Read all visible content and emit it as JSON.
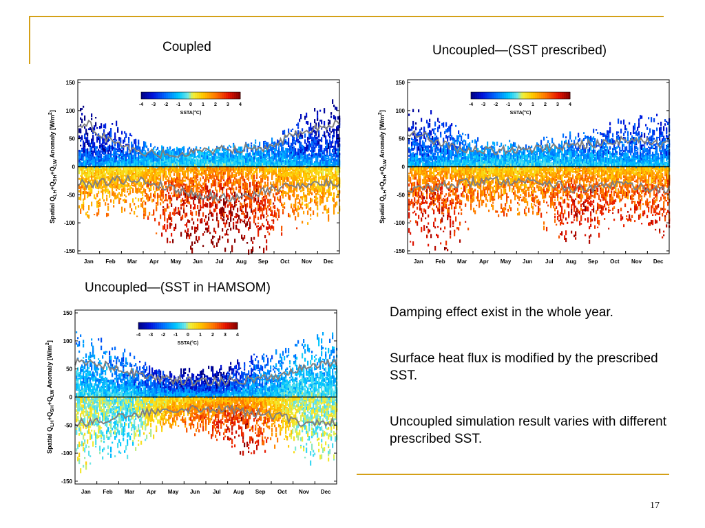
{
  "slide": {
    "accent_color": "#d4a017",
    "page_number": "17",
    "bullets": [
      "Damping effect exist in the whole year.",
      "Surface heat flux is modified by the prescribed SST.",
      "Uncoupled simulation result varies with different prescribed SST."
    ]
  },
  "chart_data": [
    {
      "type": "scatter",
      "title": "Coupled",
      "ylabel": "Spatial Q_LH+Q_SH+Q_LW Anomaly [W/m^2]",
      "ylabel_parts": {
        "p1": "Spatial Q",
        "s1": "LH",
        "p2": "+Q",
        "s2": "SH",
        "p3": "+Q",
        "s3": "LW",
        "p4": " Anomaly [W/m",
        "sup": "2",
        "p5": "]"
      },
      "yticks": [
        "150",
        "100",
        "50",
        "0",
        "-50",
        "-100",
        "-150"
      ],
      "ylim": [
        -155,
        155
      ],
      "months": [
        "Jan",
        "Feb",
        "Mar",
        "Apr",
        "May",
        "Jun",
        "Jul",
        "Aug",
        "Sep",
        "Oct",
        "Nov",
        "Dec"
      ],
      "colorbar": {
        "label": "SSTA(°C)",
        "ticks": [
          "-4",
          "-3",
          "-2",
          "-1",
          "0",
          "1",
          "2",
          "3",
          "4"
        ],
        "range": [
          -4,
          4
        ]
      },
      "zero_line": true,
      "series": [
        {
          "months_mean_positive": [
            75,
            45,
            30,
            22,
            24,
            26,
            30,
            32,
            35,
            50,
            65,
            75
          ]
        },
        {
          "months_mean_negative": [
            -30,
            -25,
            -22,
            -30,
            -40,
            -50,
            -55,
            -55,
            -45,
            -35,
            -30,
            -30
          ]
        },
        {
          "months_spread_positive": [
            70,
            60,
            40,
            25,
            25,
            25,
            25,
            28,
            35,
            50,
            70,
            80
          ]
        },
        {
          "months_spread_negative": [
            -70,
            -60,
            -55,
            -80,
            -110,
            -130,
            -130,
            -130,
            -110,
            -80,
            -70,
            -70
          ]
        },
        {
          "months_sst_negative_side": [
            1.5,
            1.5,
            1.5,
            2.2,
            3.2,
            3.5,
            3.8,
            3.6,
            3.0,
            2.0,
            1.5,
            1.3
          ]
        },
        {
          "months_sst_positive_side": [
            -3.5,
            -3.0,
            -2.2,
            -1.5,
            -1.3,
            -1.3,
            -1.3,
            -1.5,
            -1.8,
            -2.2,
            -3.0,
            -3.4
          ]
        }
      ]
    },
    {
      "type": "scatter",
      "title": "Uncoupled—(SST prescribed)",
      "ylabel": "Spatial Q_LH+Q_SH+Q_LW Anomaly [W/m^2]",
      "ylabel_parts": {
        "p1": "Spatial Q",
        "s1": "LH",
        "p2": "+Q",
        "s2": "SH",
        "p3": "+Q",
        "s3": "LW",
        "p4": " Anomaly [W/m",
        "sup": "2",
        "p5": "]"
      },
      "yticks": [
        "150",
        "100",
        "50",
        "0",
        "-50",
        "-100",
        "-150"
      ],
      "ylim": [
        -155,
        155
      ],
      "months": [
        "Jan",
        "Feb",
        "Mar",
        "Apr",
        "May",
        "Jun",
        "Jul",
        "Aug",
        "Sep",
        "Oct",
        "Nov",
        "Dec"
      ],
      "colorbar": {
        "label": "SSTA(°C)",
        "ticks": [
          "-4",
          "-3",
          "-2",
          "-1",
          "0",
          "1",
          "2",
          "3",
          "4"
        ],
        "range": [
          -4,
          4
        ]
      },
      "zero_line": true,
      "series": [
        {
          "months_mean_positive": [
            60,
            40,
            30,
            28,
            30,
            32,
            35,
            38,
            40,
            45,
            50,
            40
          ]
        },
        {
          "months_mean_negative": [
            -40,
            -35,
            -30,
            -25,
            -25,
            -25,
            -28,
            -40,
            -40,
            -30,
            -35,
            -40
          ]
        },
        {
          "months_spread_positive": [
            70,
            60,
            45,
            30,
            30,
            30,
            35,
            40,
            45,
            55,
            60,
            65
          ]
        },
        {
          "months_spread_negative": [
            -100,
            -110,
            -90,
            -60,
            -60,
            -60,
            -80,
            -100,
            -100,
            -70,
            -80,
            -90
          ]
        },
        {
          "months_sst_negative_side": [
            3.0,
            3.0,
            2.5,
            1.8,
            1.8,
            1.8,
            2.2,
            3.0,
            3.0,
            2.3,
            2.6,
            2.8
          ]
        },
        {
          "months_sst_positive_side": [
            -2.8,
            -2.5,
            -2.0,
            -1.5,
            -1.5,
            -1.5,
            -1.6,
            -1.8,
            -2.0,
            -2.3,
            -2.5,
            -2.6
          ]
        }
      ]
    },
    {
      "type": "scatter",
      "title": "Uncoupled—(SST in HAMSOM)",
      "ylabel": "Spatial Q_LH+Q_SH+Q_LW Anomaly [W/m^2]",
      "ylabel_parts": {
        "p1": "Spatial Q",
        "s1": "LH",
        "p2": "+Q",
        "s2": "SH",
        "p3": "+Q",
        "s3": "LW",
        "p4": " Anomaly [W/m",
        "sup": "2",
        "p5": "]"
      },
      "yticks": [
        "150",
        "100",
        "50",
        "0",
        "-50",
        "-100",
        "-150"
      ],
      "ylim": [
        -155,
        155
      ],
      "months": [
        "Jan",
        "Feb",
        "Mar",
        "Apr",
        "May",
        "Jun",
        "Jul",
        "Aug",
        "Sep",
        "Oct",
        "Nov",
        "Dec"
      ],
      "colorbar": {
        "label": "SSTA(°C)",
        "ticks": [
          "-4",
          "-3",
          "-2",
          "-1",
          "0",
          "1",
          "2",
          "3",
          "4"
        ],
        "range": [
          -4,
          4
        ]
      },
      "zero_line": true,
      "series": [
        {
          "months_mean_positive": [
            60,
            55,
            45,
            35,
            30,
            28,
            28,
            30,
            35,
            40,
            55,
            60
          ]
        },
        {
          "months_mean_negative": [
            -45,
            -40,
            -35,
            -25,
            -20,
            -20,
            -20,
            -25,
            -30,
            -35,
            -45,
            -45
          ]
        },
        {
          "months_spread_positive": [
            80,
            70,
            55,
            40,
            35,
            35,
            35,
            45,
            55,
            60,
            75,
            80
          ]
        },
        {
          "months_spread_negative": [
            -90,
            -80,
            -70,
            -50,
            -40,
            -45,
            -55,
            -80,
            -70,
            -60,
            -80,
            -85
          ]
        },
        {
          "months_sst_negative_side": [
            0.2,
            -0.5,
            -0.5,
            0.5,
            1.5,
            2.0,
            2.5,
            3.2,
            2.5,
            1.0,
            -0.2,
            0.0
          ]
        },
        {
          "months_sst_positive_side": [
            -1.5,
            -1.8,
            -2.0,
            -2.5,
            -3.2,
            -3.4,
            -3.3,
            -2.6,
            -2.0,
            -1.5,
            -1.2,
            -1.4
          ]
        }
      ]
    }
  ]
}
